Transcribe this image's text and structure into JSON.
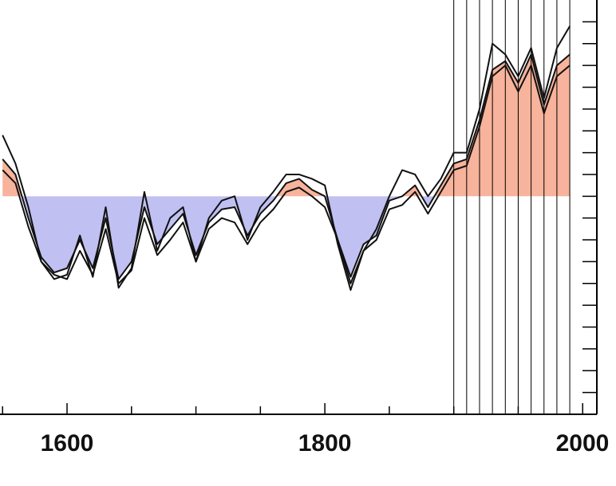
{
  "chart_data": {
    "type": "line",
    "x": [
      1550,
      1560,
      1570,
      1580,
      1590,
      1600,
      1610,
      1620,
      1630,
      1640,
      1650,
      1660,
      1670,
      1680,
      1690,
      1700,
      1710,
      1720,
      1730,
      1740,
      1750,
      1760,
      1770,
      1780,
      1790,
      1800,
      1810,
      1820,
      1830,
      1840,
      1850,
      1860,
      1870,
      1880,
      1890,
      1900,
      1910,
      1920,
      1930,
      1940,
      1950,
      1960,
      1970,
      1980,
      1990
    ],
    "series": [
      {
        "color": "#111111",
        "values": [
          0.17,
          0.1,
          -0.1,
          -0.28,
          -0.35,
          -0.33,
          -0.2,
          -0.33,
          -0.1,
          -0.38,
          -0.3,
          -0.05,
          -0.22,
          -0.15,
          -0.08,
          -0.27,
          -0.12,
          -0.06,
          -0.05,
          -0.18,
          -0.08,
          -0.02,
          0.06,
          0.08,
          0.03,
          0.0,
          -0.2,
          -0.37,
          -0.22,
          -0.18,
          -0.02,
          0.0,
          0.05,
          -0.05,
          0.05,
          0.15,
          0.17,
          0.35,
          0.58,
          0.62,
          0.52,
          0.65,
          0.42,
          0.6,
          0.65
        ]
      },
      {
        "color": "#111111",
        "values": [
          0.28,
          0.15,
          -0.05,
          -0.3,
          -0.38,
          -0.36,
          -0.18,
          -0.37,
          -0.05,
          -0.42,
          -0.33,
          0.02,
          -0.25,
          -0.1,
          -0.05,
          -0.3,
          -0.1,
          -0.02,
          0.0,
          -0.2,
          -0.05,
          0.02,
          0.1,
          0.1,
          0.08,
          0.05,
          -0.22,
          -0.43,
          -0.25,
          -0.15,
          0.0,
          0.12,
          0.1,
          0.0,
          0.08,
          0.2,
          0.2,
          0.4,
          0.7,
          0.65,
          0.55,
          0.68,
          0.45,
          0.68,
          0.78
        ]
      },
      {
        "color": "#111111",
        "values": [
          0.12,
          0.06,
          -0.14,
          -0.3,
          -0.36,
          -0.38,
          -0.25,
          -0.36,
          -0.15,
          -0.4,
          -0.34,
          -0.1,
          -0.27,
          -0.2,
          -0.12,
          -0.3,
          -0.15,
          -0.1,
          -0.12,
          -0.22,
          -0.12,
          -0.06,
          0.02,
          0.04,
          0.0,
          -0.05,
          -0.2,
          -0.4,
          -0.25,
          -0.2,
          -0.06,
          -0.04,
          0.02,
          -0.08,
          0.02,
          0.12,
          0.14,
          0.32,
          0.55,
          0.6,
          0.48,
          0.6,
          0.38,
          0.55,
          0.6
        ]
      }
    ],
    "fill_above_color": "#f7b39b",
    "fill_below_color": "#c0c0f2",
    "vlines": [
      1900,
      1910,
      1920,
      1930,
      1940,
      1950,
      1960,
      1970,
      1980,
      1990
    ],
    "xlim": [
      1548,
      2011
    ],
    "xticks": [
      1600,
      1800,
      2000
    ],
    "xminorticks": [
      1550,
      1650,
      1700,
      1750,
      1850,
      1900,
      1950
    ],
    "ylim": [
      -1.0,
      0.9
    ],
    "yticks": [
      -0.9,
      -0.8,
      -0.7,
      -0.6,
      -0.5,
      -0.4,
      -0.3,
      -0.2,
      -0.1,
      0,
      0.1,
      0.2,
      0.3,
      0.4,
      0.5,
      0.6,
      0.7,
      0.8
    ]
  }
}
